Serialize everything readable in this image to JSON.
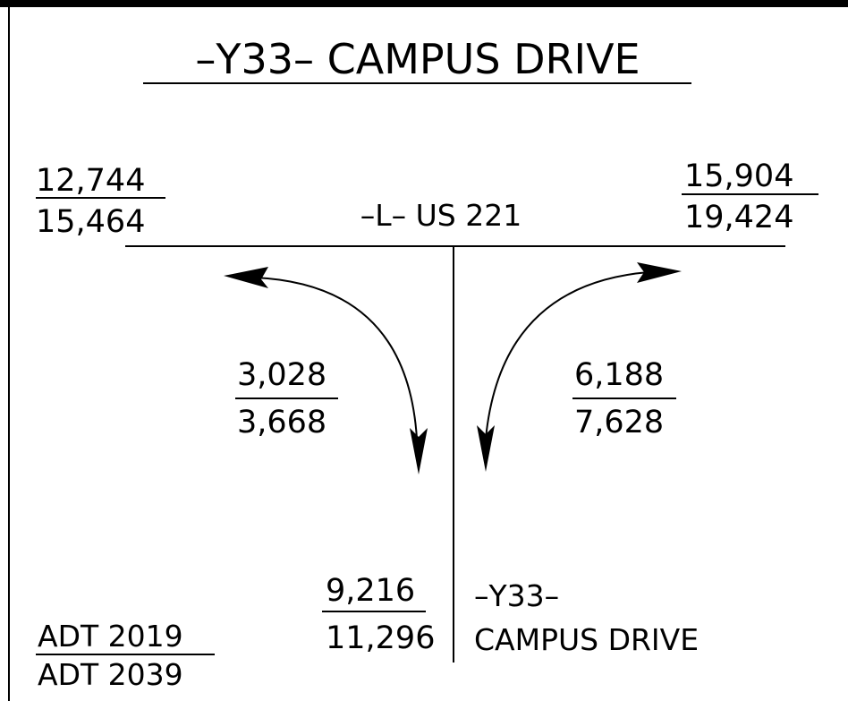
{
  "title": "–Y33– CAMPUS DRIVE",
  "main_road": "–L– US 221",
  "side_road": {
    "line1": "–Y33–",
    "line2": "CAMPUS DRIVE"
  },
  "legend": {
    "top": "ADT 2019",
    "bottom": "ADT 2039"
  },
  "volumes": {
    "west": {
      "top": "12,744",
      "bottom": "15,464"
    },
    "east": {
      "top": "15,904",
      "bottom": "19,424"
    },
    "left_turn": {
      "top": "3,028",
      "bottom": "3,668"
    },
    "right_turn": {
      "top": "6,188",
      "bottom": "7,628"
    },
    "south": {
      "top": "9,216",
      "bottom": "11,296"
    }
  }
}
